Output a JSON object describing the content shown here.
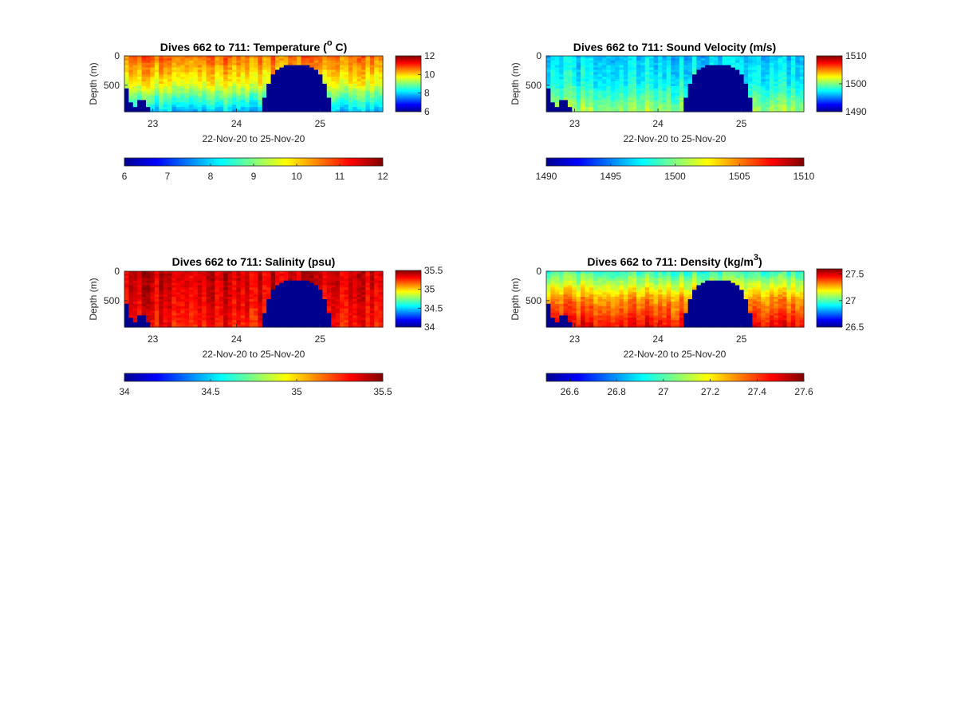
{
  "colormap": "jet",
  "chart_data": [
    {
      "type": "heatmap",
      "title": "Dives 662 to 711: Temperature (",
      "title_sup": "o",
      "title_after": " C)",
      "xlabel": "22-Nov-20 to 25-Nov-20",
      "ylabel": "Depth (m)",
      "x_ticks": [
        "23",
        "24",
        "25"
      ],
      "x_tick_values": [
        23,
        24,
        25
      ],
      "xlim": [
        22.66,
        25.75
      ],
      "y_ticks": [
        "0",
        "500"
      ],
      "y_tick_values": [
        0,
        500
      ],
      "ylim": [
        0,
        950
      ],
      "y_reversed": true,
      "clim": [
        6,
        12
      ],
      "side_colorbar_ticks": [
        "12",
        "10",
        "8",
        "6"
      ],
      "bottom_colorbar_ticks": [
        "6",
        "7",
        "8",
        "9",
        "10",
        "11",
        "12"
      ],
      "profile": {
        "surface": 10.6,
        "mid": 9.7,
        "bottom": 7.9
      },
      "no_data_color": "#00008f"
    },
    {
      "type": "heatmap",
      "title": "Dives 662 to 711: Sound Velocity (m/s)",
      "xlabel": "22-Nov-20 to 25-Nov-20",
      "ylabel": "Depth (m)",
      "x_ticks": [
        "23",
        "24",
        "25"
      ],
      "x_tick_values": [
        23,
        24,
        25
      ],
      "xlim": [
        22.66,
        25.75
      ],
      "y_ticks": [
        "0",
        "500"
      ],
      "y_tick_values": [
        0,
        500
      ],
      "ylim": [
        0,
        950
      ],
      "y_reversed": true,
      "clim": [
        1490,
        1510
      ],
      "side_colorbar_ticks": [
        "1510",
        "1500",
        "1490"
      ],
      "bottom_colorbar_ticks": [
        "1490",
        "1495",
        "1500",
        "1505",
        "1510"
      ],
      "profile": {
        "surface": 1496.5,
        "mid": 1497.6,
        "bottom": 1500.5
      },
      "no_data_color": "#00008f"
    },
    {
      "type": "heatmap",
      "title": "Dives 662 to 711: Salinity (psu)",
      "xlabel": "22-Nov-20 to 25-Nov-20",
      "ylabel": "Depth (m)",
      "x_ticks": [
        "23",
        "24",
        "25"
      ],
      "x_tick_values": [
        23,
        24,
        25
      ],
      "xlim": [
        22.66,
        25.75
      ],
      "y_ticks": [
        "0",
        "500"
      ],
      "y_tick_values": [
        0,
        500
      ],
      "ylim": [
        0,
        950
      ],
      "y_reversed": true,
      "clim": [
        34,
        35.5
      ],
      "side_colorbar_ticks": [
        "35.5",
        "35",
        "34.5",
        "34"
      ],
      "bottom_colorbar_ticks": [
        "34",
        "34.5",
        "35",
        "35.5"
      ],
      "profile": {
        "surface": 35.38,
        "mid": 35.34,
        "bottom": 35.28
      },
      "no_data_color": "#00008f"
    },
    {
      "type": "heatmap",
      "title": "Dives 662 to 711: Density (kg/m",
      "title_sup": "3",
      "title_after": ")",
      "xlabel": "22-Nov-20 to 25-Nov-20",
      "ylabel": "Depth (m)",
      "x_ticks": [
        "23",
        "24",
        "25"
      ],
      "x_tick_values": [
        23,
        24,
        25
      ],
      "xlim": [
        22.66,
        25.75
      ],
      "y_ticks": [
        "0",
        "500"
      ],
      "y_tick_values": [
        0,
        500
      ],
      "ylim": [
        0,
        950
      ],
      "y_reversed": true,
      "clim": [
        26.5,
        27.6
      ],
      "side_colorbar_ticks": [
        "27.5",
        "27",
        "26.5"
      ],
      "side_colorbar_tick_values": [
        27.5,
        27,
        26.5
      ],
      "bottom_colorbar_ticks": [
        "26.6",
        "26.8",
        "27",
        "27.2",
        "27.4",
        "27.6"
      ],
      "profile": {
        "surface": 26.98,
        "mid": 27.3,
        "bottom": 27.46
      },
      "no_data_color": "#00008f"
    }
  ]
}
